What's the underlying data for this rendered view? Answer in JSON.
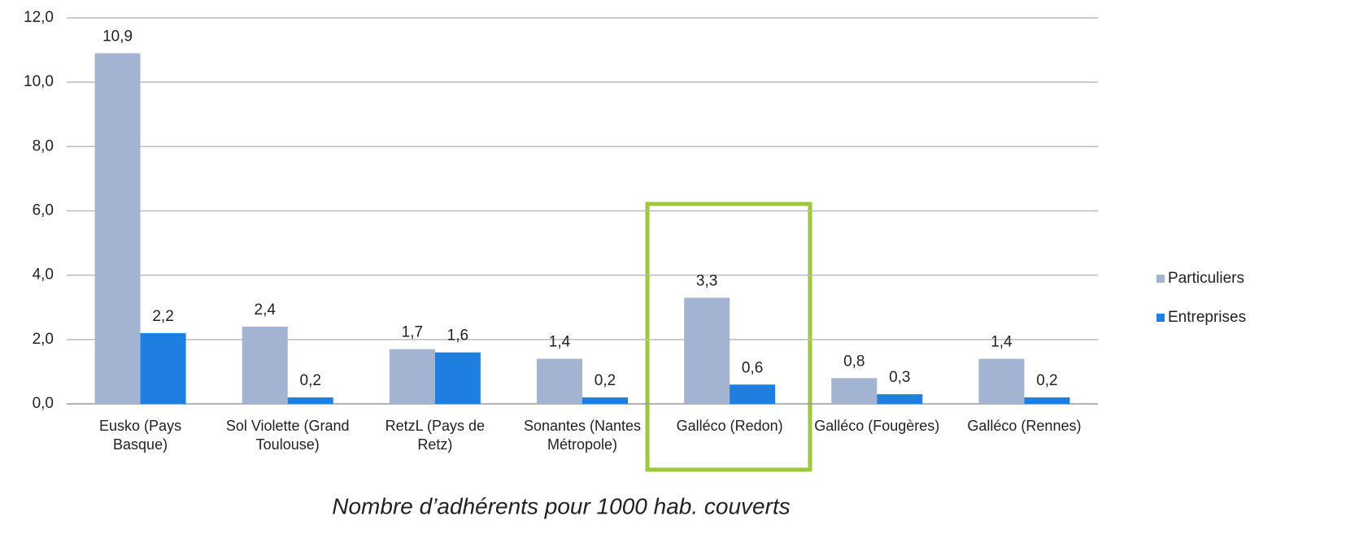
{
  "chart_data": {
    "type": "bar",
    "xlabel": "Nombre d’adhérents pour 1000 hab. couverts",
    "categories": [
      "Eusko (Pays Basque)",
      "Sol Violette (Grand Toulouse)",
      "RetzL (Pays de Retz)",
      "Sonantes (Nantes Métropole)",
      "Galléco (Redon)",
      "Galléco (Fougères)",
      "Galléco (Rennes)"
    ],
    "series": [
      {
        "name": "Particuliers",
        "color": "#a3b3d2",
        "values": [
          10.9,
          2.4,
          1.7,
          1.4,
          3.3,
          0.8,
          1.4
        ],
        "value_labels": [
          "10,9",
          "2,4",
          "1,7",
          "1,4",
          "3,3",
          "0,8",
          "1,4"
        ]
      },
      {
        "name": "Entreprises",
        "color": "#1f7fe0",
        "values": [
          2.2,
          0.2,
          1.6,
          0.2,
          0.6,
          0.3,
          0.2
        ],
        "value_labels": [
          "2,2",
          "0,2",
          "1,6",
          "0,2",
          "0,6",
          "0,3",
          "0,2"
        ]
      }
    ],
    "ylim": [
      0,
      12
    ],
    "yticks": [
      {
        "value": 0,
        "label": "0,0"
      },
      {
        "value": 2,
        "label": "2,0"
      },
      {
        "value": 4,
        "label": "4,0"
      },
      {
        "value": 6,
        "label": "6,0"
      },
      {
        "value": 8,
        "label": "8,0"
      },
      {
        "value": 10,
        "label": "10,0"
      },
      {
        "value": 12,
        "label": "12,0"
      }
    ],
    "grid": true,
    "legend": "right"
  }
}
